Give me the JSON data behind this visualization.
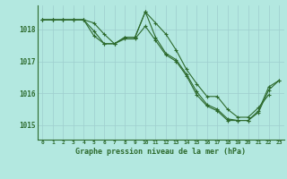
{
  "title": "Graphe pression niveau de la mer (hPa)",
  "background_color": "#b3e8e0",
  "line_color": "#2d6a2d",
  "grid_color": "#9ecece",
  "xlim": [
    -0.5,
    23.5
  ],
  "ylim": [
    1014.55,
    1018.75
  ],
  "yticks": [
    1015,
    1016,
    1017,
    1018
  ],
  "xticks": [
    0,
    1,
    2,
    3,
    4,
    5,
    6,
    7,
    8,
    9,
    10,
    11,
    12,
    13,
    14,
    15,
    16,
    17,
    18,
    19,
    20,
    21,
    22,
    23
  ],
  "series": [
    [
      1018.3,
      1018.3,
      1018.3,
      1018.3,
      1018.3,
      1018.2,
      1017.85,
      1017.55,
      1017.75,
      1017.75,
      1018.55,
      1018.2,
      1017.85,
      1017.35,
      1016.75,
      1016.3,
      1015.9,
      1015.9,
      1015.5,
      1015.25,
      1015.25,
      1015.55,
      1015.95,
      null
    ],
    [
      1018.3,
      1018.3,
      1018.3,
      1018.3,
      1018.3,
      1017.95,
      1017.55,
      1017.55,
      1017.75,
      1017.75,
      1018.55,
      1017.75,
      1017.25,
      1017.05,
      1016.6,
      1016.05,
      1015.65,
      1015.5,
      1015.2,
      1015.15,
      1015.15,
      1015.45,
      1016.2,
      1016.4
    ],
    [
      1018.3,
      1018.3,
      1018.3,
      1018.3,
      1018.3,
      1017.8,
      1017.55,
      1017.55,
      1017.7,
      1017.7,
      1018.1,
      1017.65,
      1017.2,
      1017.0,
      1016.55,
      1015.95,
      1015.6,
      1015.45,
      1015.15,
      1015.15,
      1015.15,
      1015.4,
      1016.1,
      1016.4
    ]
  ]
}
